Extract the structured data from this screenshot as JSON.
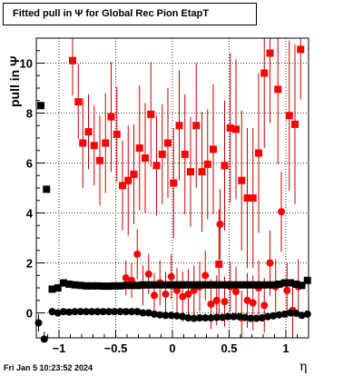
{
  "title": "Fitted pull in  Ψ  for Global Rec Pion EtapT",
  "ylabel": "pull in  Ψ",
  "xlabel": "η",
  "datestamp": "Fri Jan  5 10:23:52 2024",
  "colors": {
    "red": "#ff0000",
    "black": "#000000",
    "errorbar": "#cc0000",
    "grid": "#000000"
  },
  "chart_data": {
    "type": "scatter",
    "title": "Fitted pull in  Ψ  for Global Rec Pion EtapT",
    "xlabel": "η",
    "ylabel": "pull in  Ψ",
    "xlim": [
      -1.2,
      1.2
    ],
    "ylim": [
      -1.0,
      11.0
    ],
    "grid": true,
    "x_ticks": [
      -1,
      -0.5,
      0,
      0.5,
      1
    ],
    "y_ticks": [
      0,
      2,
      4,
      6,
      8,
      10
    ],
    "series": [
      {
        "marker": "square",
        "color": "red",
        "points": [
          {
            "x": -0.88,
            "y": 10.1,
            "err": 1.4
          },
          {
            "x": -0.83,
            "y": 8.45,
            "err": 1.5
          },
          {
            "x": -0.79,
            "y": 6.8,
            "err": 1.8
          },
          {
            "x": -0.74,
            "y": 7.25,
            "err": 1.5
          },
          {
            "x": -0.69,
            "y": 6.7,
            "err": 1.6
          },
          {
            "x": -0.64,
            "y": 6.1,
            "err": 1.8
          },
          {
            "x": -0.59,
            "y": 6.8,
            "err": 2.0
          },
          {
            "x": -0.54,
            "y": 7.85,
            "err": 2.2
          },
          {
            "x": -0.49,
            "y": 7.15,
            "err": 1.9
          },
          {
            "x": -0.44,
            "y": 5.1,
            "err": 1.8
          },
          {
            "x": -0.39,
            "y": 5.3,
            "err": 2.2
          },
          {
            "x": -0.34,
            "y": 5.55,
            "err": 2.0
          },
          {
            "x": -0.29,
            "y": 6.6,
            "err": 2.5
          },
          {
            "x": -0.24,
            "y": 6.2,
            "err": 2.2
          },
          {
            "x": -0.19,
            "y": 7.95,
            "err": 2.1
          },
          {
            "x": -0.14,
            "y": 5.9,
            "err": 2.0
          },
          {
            "x": -0.09,
            "y": 6.35,
            "err": 2.0
          },
          {
            "x": -0.04,
            "y": 6.8,
            "err": 2.2
          },
          {
            "x": 0.01,
            "y": 5.2,
            "err": 2.2
          },
          {
            "x": 0.06,
            "y": 7.5,
            "err": 2.2
          },
          {
            "x": 0.11,
            "y": 6.35,
            "err": 2.4
          },
          {
            "x": 0.16,
            "y": 5.65,
            "err": 2.2
          },
          {
            "x": 0.21,
            "y": 7.5,
            "err": 2.5
          },
          {
            "x": 0.26,
            "y": 5.65,
            "err": 2.4
          },
          {
            "x": 0.31,
            "y": 5.95,
            "err": 2.2
          },
          {
            "x": 0.36,
            "y": 6.55,
            "err": 2.6
          },
          {
            "x": 0.41,
            "y": 1.95,
            "err": 2.2
          },
          {
            "x": 0.46,
            "y": 5.9,
            "err": 2.6
          },
          {
            "x": 0.51,
            "y": 7.4,
            "err": 3.0
          },
          {
            "x": 0.56,
            "y": 7.35,
            "err": 2.8
          },
          {
            "x": 0.61,
            "y": 5.3,
            "err": 2.8
          },
          {
            "x": 0.66,
            "y": 4.6,
            "err": 2.8
          },
          {
            "x": 0.71,
            "y": 4.6,
            "err": 2.8
          },
          {
            "x": 0.76,
            "y": 6.4,
            "err": 3.2
          },
          {
            "x": 0.81,
            "y": 9.6,
            "err": 3.0
          },
          {
            "x": 0.86,
            "y": 10.4,
            "err": 2.8
          },
          {
            "x": 0.93,
            "y": 8.95,
            "err": 3.0
          },
          {
            "x": 1.03,
            "y": 7.9,
            "err": 3.0
          },
          {
            "x": 1.08,
            "y": 7.55,
            "err": 3.2
          },
          {
            "x": 1.13,
            "y": 10.55,
            "err": 2.0
          }
        ]
      },
      {
        "marker": "circle",
        "color": "red",
        "points": [
          {
            "x": -0.41,
            "y": 1.4,
            "err": 0.7
          },
          {
            "x": -0.36,
            "y": 1.3,
            "err": 0.7
          },
          {
            "x": -0.31,
            "y": 2.35,
            "err": 1.0
          },
          {
            "x": -0.26,
            "y": 1.1,
            "err": 0.8
          },
          {
            "x": -0.21,
            "y": 1.55,
            "err": 0.8
          },
          {
            "x": -0.16,
            "y": 0.7,
            "err": 0.9
          },
          {
            "x": -0.11,
            "y": 1.2,
            "err": 0.9
          },
          {
            "x": -0.06,
            "y": 0.75,
            "err": 0.9
          },
          {
            "x": -0.01,
            "y": 1.45,
            "err": 0.9
          },
          {
            "x": 0.04,
            "y": 0.9,
            "err": 0.9
          },
          {
            "x": 0.09,
            "y": 0.65,
            "err": 1.0
          },
          {
            "x": 0.14,
            "y": 0.75,
            "err": 1.0
          },
          {
            "x": 0.19,
            "y": 0.9,
            "err": 1.0
          },
          {
            "x": 0.24,
            "y": 1.05,
            "err": 1.0
          },
          {
            "x": 0.29,
            "y": 1.5,
            "err": 1.0
          },
          {
            "x": 0.34,
            "y": 0.35,
            "err": 1.0
          },
          {
            "x": 0.39,
            "y": 0.5,
            "err": 1.0
          },
          {
            "x": 0.42,
            "y": 3.55,
            "err": 1.4
          },
          {
            "x": 0.46,
            "y": 0.45,
            "err": 1.0
          },
          {
            "x": 0.51,
            "y": 1.05,
            "err": 1.0
          },
          {
            "x": 0.56,
            "y": 0.85,
            "err": 1.0
          },
          {
            "x": 0.61,
            "y": -0.2,
            "err": 1.1
          },
          {
            "x": 0.66,
            "y": 0.5,
            "err": 1.1
          },
          {
            "x": 0.71,
            "y": 0.4,
            "err": 1.1
          },
          {
            "x": 0.76,
            "y": 1.0,
            "err": 1.1
          },
          {
            "x": 0.81,
            "y": 0.3,
            "err": 1.1
          },
          {
            "x": 0.86,
            "y": 2.0,
            "err": 1.3
          },
          {
            "x": 0.91,
            "y": 1.05,
            "err": 1.1
          },
          {
            "x": 0.96,
            "y": 4.05,
            "err": 1.6
          },
          {
            "x": 1.01,
            "y": 0.9,
            "err": 1.1
          },
          {
            "x": 1.06,
            "y": 0.1,
            "err": 1.1
          },
          {
            "x": 1.11,
            "y": 1.05,
            "err": 1.1
          }
        ]
      },
      {
        "marker": "square",
        "color": "black",
        "points": [
          {
            "x": -1.16,
            "y": 8.3,
            "err": 0
          },
          {
            "x": -1.11,
            "y": 4.95,
            "err": 0
          },
          {
            "x": -1.06,
            "y": 0.95,
            "err": 0
          },
          {
            "x": -1.01,
            "y": 1.0,
            "err": 0
          },
          {
            "x": -0.96,
            "y": 1.2,
            "err": 0
          },
          {
            "x": -0.91,
            "y": 1.15,
            "err": 0
          },
          {
            "x": -0.86,
            "y": 1.12,
            "err": 0
          },
          {
            "x": -0.81,
            "y": 1.1,
            "err": 0
          },
          {
            "x": -0.76,
            "y": 1.08,
            "err": 0
          },
          {
            "x": -0.71,
            "y": 1.08,
            "err": 0
          },
          {
            "x": -0.66,
            "y": 1.08,
            "err": 0
          },
          {
            "x": -0.61,
            "y": 1.07,
            "err": 0
          },
          {
            "x": -0.56,
            "y": 1.07,
            "err": 0
          },
          {
            "x": -0.51,
            "y": 1.08,
            "err": 0
          },
          {
            "x": -0.46,
            "y": 1.08,
            "err": 0
          },
          {
            "x": -0.41,
            "y": 1.1,
            "err": 0
          },
          {
            "x": -0.36,
            "y": 1.1,
            "err": 0
          },
          {
            "x": -0.31,
            "y": 1.1,
            "err": 0
          },
          {
            "x": -0.26,
            "y": 1.12,
            "err": 0
          },
          {
            "x": -0.21,
            "y": 1.12,
            "err": 0
          },
          {
            "x": -0.16,
            "y": 1.12,
            "err": 0
          },
          {
            "x": -0.11,
            "y": 1.12,
            "err": 0
          },
          {
            "x": -0.06,
            "y": 1.12,
            "err": 0
          },
          {
            "x": -0.01,
            "y": 1.12,
            "err": 0
          },
          {
            "x": 0.04,
            "y": 1.12,
            "err": 0
          },
          {
            "x": 0.09,
            "y": 1.12,
            "err": 0
          },
          {
            "x": 0.14,
            "y": 1.12,
            "err": 0
          },
          {
            "x": 0.19,
            "y": 1.12,
            "err": 0
          },
          {
            "x": 0.24,
            "y": 1.12,
            "err": 0
          },
          {
            "x": 0.29,
            "y": 1.12,
            "err": 0
          },
          {
            "x": 0.34,
            "y": 1.12,
            "err": 0
          },
          {
            "x": 0.39,
            "y": 1.12,
            "err": 0
          },
          {
            "x": 0.44,
            "y": 1.12,
            "err": 0
          },
          {
            "x": 0.49,
            "y": 1.12,
            "err": 0
          },
          {
            "x": 0.54,
            "y": 1.12,
            "err": 0
          },
          {
            "x": 0.59,
            "y": 1.12,
            "err": 0
          },
          {
            "x": 0.64,
            "y": 1.12,
            "err": 0
          },
          {
            "x": 0.69,
            "y": 1.12,
            "err": 0
          },
          {
            "x": 0.74,
            "y": 1.12,
            "err": 0
          },
          {
            "x": 0.79,
            "y": 1.12,
            "err": 0
          },
          {
            "x": 0.84,
            "y": 1.12,
            "err": 0
          },
          {
            "x": 0.89,
            "y": 1.12,
            "err": 0
          },
          {
            "x": 0.94,
            "y": 1.15,
            "err": 0
          },
          {
            "x": 0.99,
            "y": 1.2,
            "err": 0
          },
          {
            "x": 1.04,
            "y": 1.2,
            "err": 0
          },
          {
            "x": 1.09,
            "y": 1.15,
            "err": 0
          },
          {
            "x": 1.14,
            "y": 1.1,
            "err": 0
          },
          {
            "x": 1.19,
            "y": 1.3,
            "err": 0
          }
        ]
      },
      {
        "marker": "circle",
        "color": "black",
        "points": [
          {
            "x": -1.18,
            "y": -0.4,
            "err": 0.35
          },
          {
            "x": -1.13,
            "y": -1.05,
            "err": 0.3
          },
          {
            "x": -1.06,
            "y": 0.05,
            "err": 0.12
          },
          {
            "x": -1.01,
            "y": 0.0,
            "err": 0.12
          },
          {
            "x": -0.96,
            "y": 0.05,
            "err": 0.12
          },
          {
            "x": -0.91,
            "y": 0.03,
            "err": 0.12
          },
          {
            "x": -0.86,
            "y": 0.05,
            "err": 0.12
          },
          {
            "x": -0.81,
            "y": 0.05,
            "err": 0.12
          },
          {
            "x": -0.76,
            "y": 0.05,
            "err": 0.12
          },
          {
            "x": -0.71,
            "y": 0.05,
            "err": 0.12
          },
          {
            "x": -0.66,
            "y": 0.05,
            "err": 0.12
          },
          {
            "x": -0.61,
            "y": 0.05,
            "err": 0.12
          },
          {
            "x": -0.56,
            "y": 0.05,
            "err": 0.12
          },
          {
            "x": -0.51,
            "y": 0.05,
            "err": 0.12
          },
          {
            "x": -0.46,
            "y": 0.05,
            "err": 0.12
          },
          {
            "x": -0.41,
            "y": 0.05,
            "err": 0.12
          },
          {
            "x": -0.36,
            "y": 0.05,
            "err": 0.12
          },
          {
            "x": -0.31,
            "y": 0.05,
            "err": 0.12
          },
          {
            "x": -0.26,
            "y": 0.0,
            "err": 0.12
          },
          {
            "x": -0.21,
            "y": 0.0,
            "err": 0.12
          },
          {
            "x": -0.16,
            "y": -0.05,
            "err": 0.12
          },
          {
            "x": -0.11,
            "y": -0.08,
            "err": 0.12
          },
          {
            "x": -0.06,
            "y": -0.1,
            "err": 0.12
          },
          {
            "x": -0.01,
            "y": -0.1,
            "err": 0.12
          },
          {
            "x": 0.04,
            "y": -0.12,
            "err": 0.12
          },
          {
            "x": 0.09,
            "y": -0.15,
            "err": 0.12
          },
          {
            "x": 0.14,
            "y": -0.2,
            "err": 0.12
          },
          {
            "x": 0.19,
            "y": -0.22,
            "err": 0.12
          },
          {
            "x": 0.24,
            "y": -0.2,
            "err": 0.12
          },
          {
            "x": 0.29,
            "y": -0.2,
            "err": 0.12
          },
          {
            "x": 0.34,
            "y": -0.2,
            "err": 0.12
          },
          {
            "x": 0.39,
            "y": -0.18,
            "err": 0.12
          },
          {
            "x": 0.44,
            "y": -0.18,
            "err": 0.12
          },
          {
            "x": 0.49,
            "y": -0.15,
            "err": 0.12
          },
          {
            "x": 0.54,
            "y": -0.15,
            "err": 0.12
          },
          {
            "x": 0.59,
            "y": -0.15,
            "err": 0.12
          },
          {
            "x": 0.64,
            "y": -0.18,
            "err": 0.12
          },
          {
            "x": 0.69,
            "y": -0.22,
            "err": 0.12
          },
          {
            "x": 0.74,
            "y": -0.22,
            "err": 0.12
          },
          {
            "x": 0.79,
            "y": -0.2,
            "err": 0.12
          },
          {
            "x": 0.84,
            "y": -0.15,
            "err": 0.12
          },
          {
            "x": 0.89,
            "y": -0.12,
            "err": 0.12
          },
          {
            "x": 0.94,
            "y": -0.08,
            "err": 0.12
          },
          {
            "x": 0.99,
            "y": -0.05,
            "err": 0.12
          },
          {
            "x": 1.04,
            "y": 0.0,
            "err": 0.12
          },
          {
            "x": 1.09,
            "y": -0.02,
            "err": 0.12
          },
          {
            "x": 1.14,
            "y": -0.1,
            "err": 0.12
          },
          {
            "x": 1.19,
            "y": -0.05,
            "err": 0.12
          }
        ]
      }
    ]
  }
}
